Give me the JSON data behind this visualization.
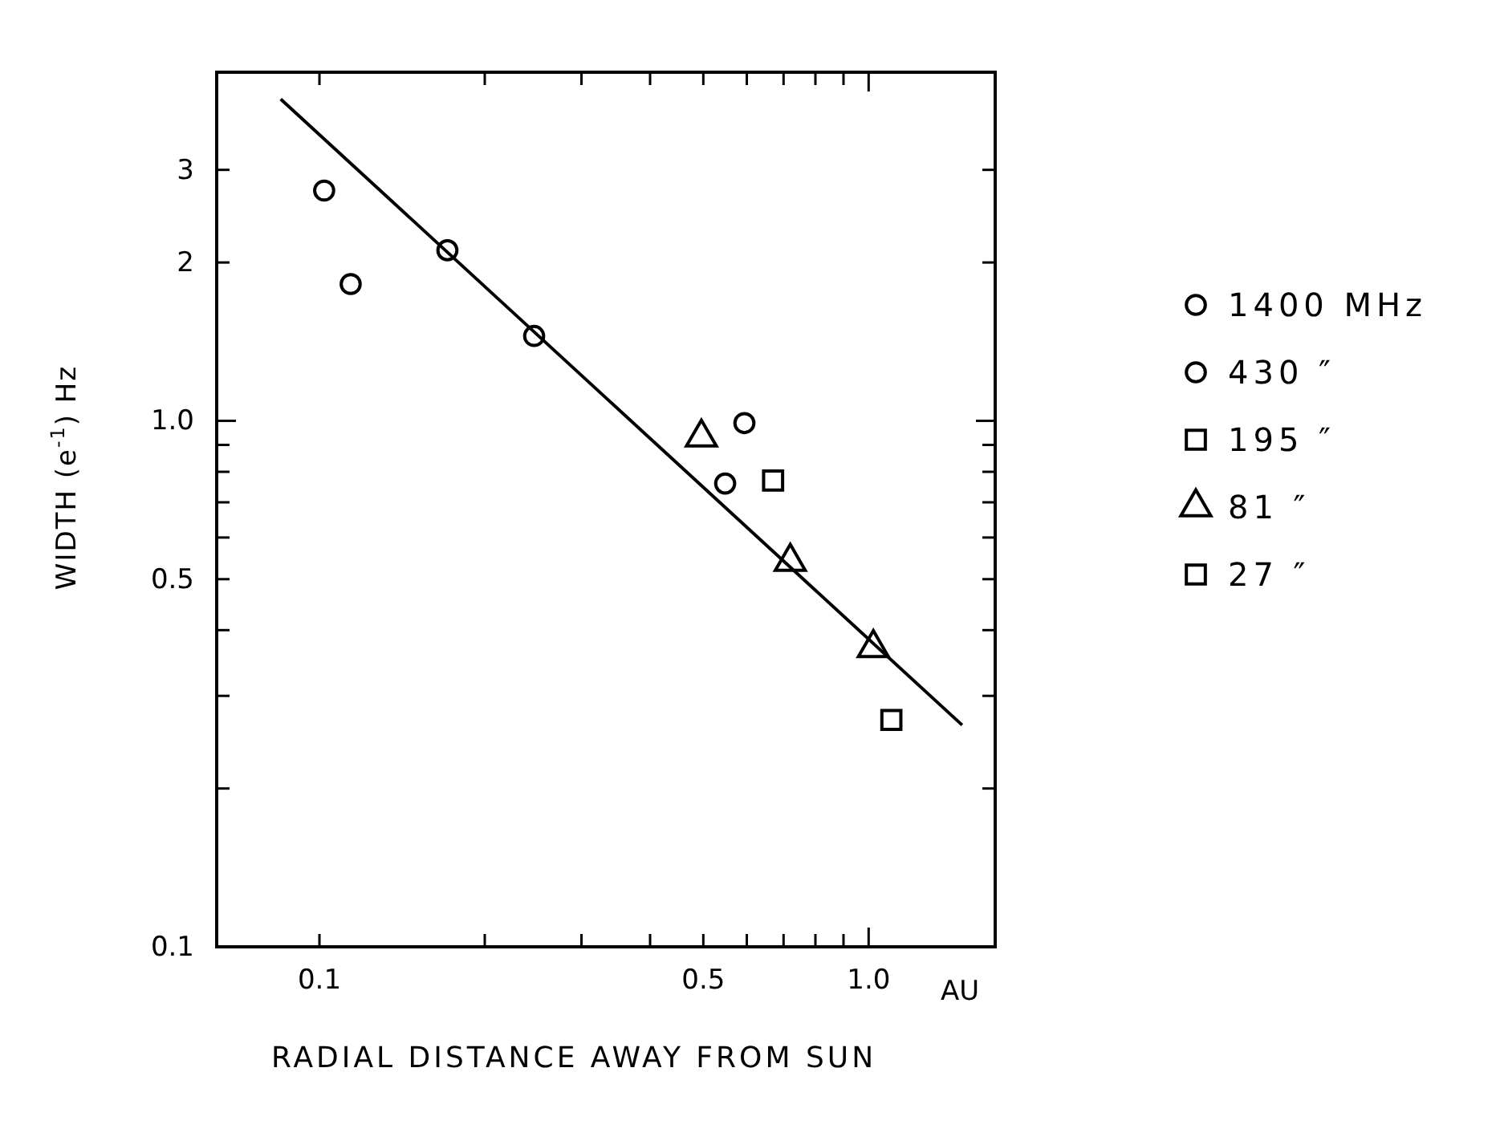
{
  "chart_data": {
    "type": "scatter",
    "xlabel": "RADIAL DISTANCE AWAY FROM SUN",
    "ylabel": "WIDTH (e$^{-1}$) Hz",
    "log": "xy",
    "legend": "right",
    "grid": false,
    "xlim": [
      0.065,
      1.7
    ],
    "ylim": [
      0.1,
      4.6
    ],
    "xticks": [
      0.1,
      {
        "value": 0.2,
        "label": null
      },
      {
        "value": 0.3,
        "label": null
      },
      {
        "value": 0.4,
        "label": null
      },
      0.5,
      {
        "value": 0.6,
        "label": null
      },
      {
        "value": 0.7,
        "label": null
      },
      {
        "value": 0.8,
        "label": null
      },
      {
        "value": 0.9,
        "label": null
      },
      {
        "value": 1.0,
        "label": "1.0"
      }
    ],
    "yticks": [
      0.1,
      {
        "value": 0.2,
        "label": null
      },
      {
        "value": 0.3,
        "label": null
      },
      {
        "value": 0.4,
        "label": null
      },
      0.5,
      {
        "value": 0.6,
        "label": null
      },
      {
        "value": 0.7,
        "label": null
      },
      {
        "value": 0.8,
        "label": null
      },
      {
        "value": 0.9,
        "label": null
      },
      {
        "value": 1.0,
        "label": "1.0"
      },
      2,
      3
    ],
    "annotations": [
      "AU"
    ],
    "series": [
      {
        "name": "1400 MHz",
        "color": "#000000",
        "marker": "circle",
        "x": [
          0.102,
          0.114
        ],
        "values": [
          2.74,
          1.82
        ]
      },
      {
        "name": "430 ″",
        "color": "#000000",
        "marker": "circle",
        "x": [
          0.171,
          0.246,
          0.594,
          0.548
        ],
        "values": [
          2.11,
          1.45,
          0.99,
          0.76
        ]
      },
      {
        "name": "195 ″",
        "color": "#000000",
        "marker": "square",
        "x": [
          0.67
        ],
        "values": [
          0.77
        ]
      },
      {
        "name": "81 ″",
        "color": "#000000",
        "marker": "triangle",
        "x": [
          0.496,
          0.72,
          1.02
        ],
        "values": [
          0.93,
          0.54,
          0.37
        ]
      },
      {
        "name": "27 ″",
        "color": "#000000",
        "marker": "square",
        "x": [
          1.1
        ],
        "values": [
          0.27
        ]
      },
      {
        "type": "line",
        "color": "#000000",
        "marker": "none",
        "line_style": "solid",
        "x": [
          0.085,
          1.48
        ],
        "values": [
          4.09,
          0.264
        ]
      }
    ]
  }
}
